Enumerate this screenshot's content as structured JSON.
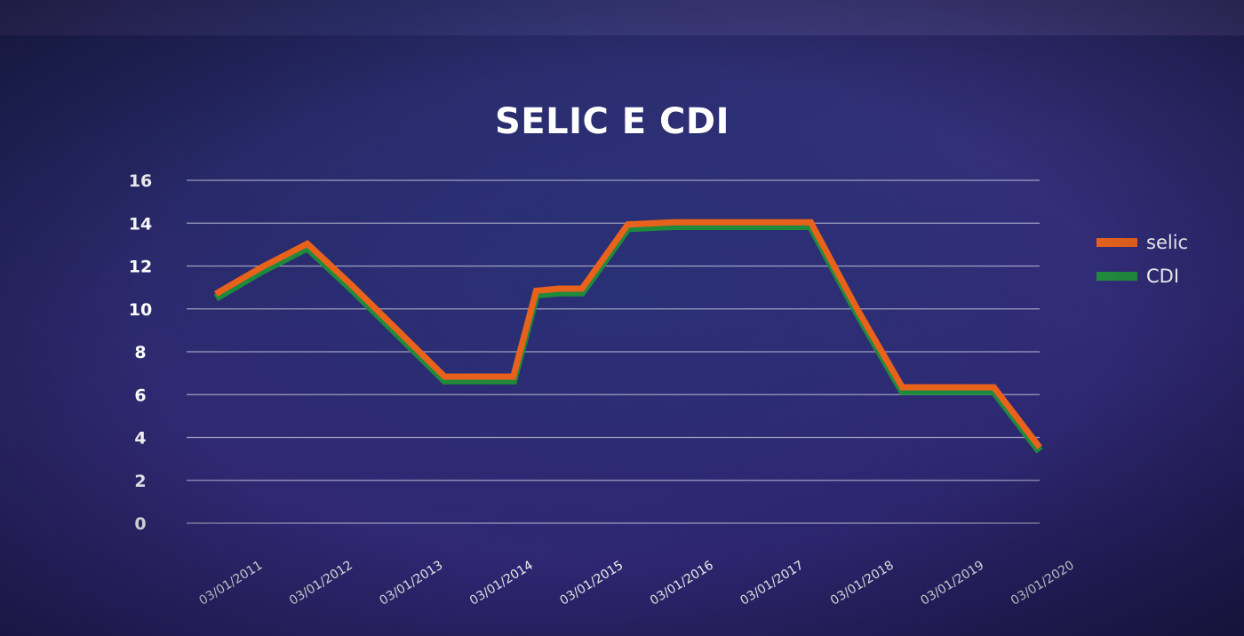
{
  "chart_data": {
    "type": "line",
    "title": "SELIC E CDI",
    "xlabel": "",
    "ylabel": "",
    "ylim": [
      0,
      16
    ],
    "y_ticks": [
      0,
      2,
      4,
      6,
      8,
      10,
      12,
      14,
      16
    ],
    "grid": true,
    "legend_position": "right",
    "categories": [
      "03/01/2011",
      "03/01/2012",
      "03/01/2013",
      "03/01/2014",
      "03/01/2015",
      "03/01/2016",
      "03/01/2017",
      "03/01/2018",
      "03/01/2019",
      "03/01/2020"
    ],
    "x": [
      2011.0,
      2011.5,
      2012.0,
      2012.5,
      2013.0,
      2013.5,
      2014.0,
      2014.25,
      2014.5,
      2014.75,
      2015.0,
      2015.5,
      2016.0,
      2016.5,
      2017.0,
      2017.5,
      2018.0,
      2018.5,
      2019.0,
      2019.25,
      2019.5,
      2020.0
    ],
    "series": [
      {
        "name": "selic",
        "color": "#e8621c",
        "values": [
          10.66,
          11.9,
          13.0,
          11.0,
          8.9,
          6.8,
          6.8,
          6.8,
          10.8,
          10.9,
          10.9,
          13.9,
          14.0,
          14.0,
          14.0,
          14.0,
          10.0,
          6.3,
          6.3,
          6.3,
          6.3,
          3.5
        ]
      },
      {
        "name": "CDI",
        "color": "#1f8a3c",
        "values": [
          10.6,
          11.85,
          12.95,
          10.95,
          8.85,
          6.75,
          6.75,
          6.75,
          10.75,
          10.85,
          10.85,
          13.85,
          13.95,
          13.95,
          13.95,
          13.95,
          9.95,
          6.25,
          6.25,
          6.25,
          6.25,
          3.45
        ]
      }
    ]
  }
}
